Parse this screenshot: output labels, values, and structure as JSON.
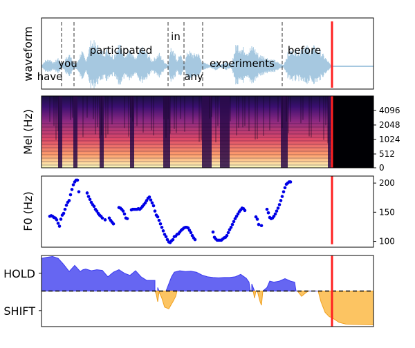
{
  "colors": {
    "waveform": "#a6c8e0",
    "cursor": "#ff2020",
    "word_boundary": "#303030",
    "f0_points": "#0000e6",
    "hold_fill": "#6666f2",
    "hold_edge": "#3a3af0",
    "shift_fill": "#fcc462",
    "shift_edge": "#f0a020",
    "threshold": "#000000",
    "mel_bg": "#000004"
  },
  "chart_data": [
    {
      "type": "line",
      "panel": "waveform",
      "ylabel": "waveform",
      "x_range": [
        0,
        480
      ],
      "cursor_x": 420,
      "word_boundaries": [
        29,
        47,
        183,
        206,
        233,
        348
      ],
      "words": [
        {
          "text": "have",
          "x": 12,
          "level": "low"
        },
        {
          "text": "you",
          "x": 38,
          "level": "mid"
        },
        {
          "text": "participated",
          "x": 115,
          "level": "high"
        },
        {
          "text": "in",
          "x": 194,
          "level": "top"
        },
        {
          "text": "any",
          "x": 220,
          "level": "low"
        },
        {
          "text": "experiments",
          "x": 290,
          "level": "mid"
        },
        {
          "text": "before",
          "x": 380,
          "level": "high"
        }
      ],
      "envelope": [
        [
          0,
          0.04
        ],
        [
          5,
          0.2
        ],
        [
          12,
          0.25
        ],
        [
          18,
          0.12
        ],
        [
          24,
          0.3
        ],
        [
          30,
          0.05
        ],
        [
          36,
          0.3
        ],
        [
          42,
          0.45
        ],
        [
          47,
          0.08
        ],
        [
          52,
          0.15
        ],
        [
          58,
          0.55
        ],
        [
          64,
          0.2
        ],
        [
          72,
          0.9
        ],
        [
          80,
          0.75
        ],
        [
          88,
          0.5
        ],
        [
          96,
          0.6
        ],
        [
          104,
          0.35
        ],
        [
          112,
          0.8
        ],
        [
          120,
          0.45
        ],
        [
          128,
          0.55
        ],
        [
          136,
          0.25
        ],
        [
          144,
          0.65
        ],
        [
          152,
          0.5
        ],
        [
          160,
          0.2
        ],
        [
          170,
          0.45
        ],
        [
          178,
          0.15
        ],
        [
          183,
          0.05
        ],
        [
          186,
          0.55
        ],
        [
          190,
          0.7
        ],
        [
          196,
          0.2
        ],
        [
          200,
          0.45
        ],
        [
          206,
          0.1
        ],
        [
          212,
          0.55
        ],
        [
          220,
          0.4
        ],
        [
          226,
          0.5
        ],
        [
          232,
          0.15
        ],
        [
          238,
          0.1
        ],
        [
          245,
          0.05
        ],
        [
          252,
          0.2
        ],
        [
          258,
          0.05
        ],
        [
          266,
          0.15
        ],
        [
          274,
          0.05
        ],
        [
          282,
          0.8
        ],
        [
          290,
          0.65
        ],
        [
          298,
          0.55
        ],
        [
          306,
          0.7
        ],
        [
          314,
          0.4
        ],
        [
          322,
          0.35
        ],
        [
          330,
          0.25
        ],
        [
          338,
          0.2
        ],
        [
          344,
          0.1
        ],
        [
          350,
          0.05
        ],
        [
          356,
          0.45
        ],
        [
          364,
          0.6
        ],
        [
          372,
          0.55
        ],
        [
          380,
          0.75
        ],
        [
          388,
          0.6
        ],
        [
          396,
          0.7
        ],
        [
          404,
          0.5
        ],
        [
          412,
          0.25
        ],
        [
          418,
          0.05
        ],
        [
          420,
          0.02
        ],
        [
          480,
          0.02
        ]
      ]
    },
    {
      "type": "heatmap",
      "panel": "mel",
      "ylabel": "Mel (Hz)",
      "x_range": [
        0,
        480
      ],
      "cursor_x": 420,
      "yticks": [
        "0",
        "512",
        "1024",
        "2048",
        "4096"
      ]
    },
    {
      "type": "scatter",
      "panel": "f0",
      "ylabel": "F0 (Hz)",
      "x_range": [
        0,
        480
      ],
      "ylim": [
        90,
        212
      ],
      "yticks": [
        100,
        150,
        200
      ],
      "cursor_x": 420,
      "cursor_range": [
        95,
        212
      ],
      "points": [
        [
          12,
          143
        ],
        [
          14,
          144
        ],
        [
          16,
          143
        ],
        [
          18,
          141
        ],
        [
          20,
          140
        ],
        [
          22,
          137
        ],
        [
          24,
          131
        ],
        [
          26,
          126
        ],
        [
          28,
          138
        ],
        [
          30,
          145
        ],
        [
          32,
          148
        ],
        [
          34,
          155
        ],
        [
          36,
          162
        ],
        [
          38,
          167
        ],
        [
          40,
          170
        ],
        [
          42,
          180
        ],
        [
          44,
          189
        ],
        [
          46,
          197
        ],
        [
          48,
          202
        ],
        [
          50,
          205
        ],
        [
          52,
          205
        ],
        [
          54,
          185
        ],
        [
          66,
          183
        ],
        [
          68,
          177
        ],
        [
          70,
          172
        ],
        [
          72,
          167
        ],
        [
          74,
          163
        ],
        [
          76,
          160
        ],
        [
          78,
          155
        ],
        [
          80,
          152
        ],
        [
          82,
          148
        ],
        [
          84,
          145
        ],
        [
          86,
          143
        ],
        [
          88,
          140
        ],
        [
          92,
          137
        ],
        [
          98,
          140
        ],
        [
          100,
          136
        ],
        [
          102,
          133
        ],
        [
          104,
          130
        ],
        [
          112,
          158
        ],
        [
          114,
          157
        ],
        [
          116,
          155
        ],
        [
          118,
          152
        ],
        [
          120,
          147
        ],
        [
          122,
          140
        ],
        [
          124,
          139
        ],
        [
          130,
          154
        ],
        [
          132,
          155
        ],
        [
          134,
          155
        ],
        [
          136,
          155
        ],
        [
          138,
          155
        ],
        [
          140,
          156
        ],
        [
          142,
          155
        ],
        [
          144,
          157
        ],
        [
          146,
          160
        ],
        [
          148,
          163
        ],
        [
          150,
          166
        ],
        [
          152,
          170
        ],
        [
          154,
          174
        ],
        [
          156,
          176
        ],
        [
          158,
          171
        ],
        [
          160,
          166
        ],
        [
          162,
          161
        ],
        [
          164,
          152
        ],
        [
          166,
          145
        ],
        [
          168,
          142
        ],
        [
          170,
          136
        ],
        [
          172,
          130
        ],
        [
          174,
          124
        ],
        [
          176,
          118
        ],
        [
          178,
          112
        ],
        [
          180,
          108
        ],
        [
          182,
          103
        ],
        [
          184,
          99
        ],
        [
          186,
          98
        ],
        [
          188,
          101
        ],
        [
          190,
          103
        ],
        [
          192,
          108
        ],
        [
          194,
          109
        ],
        [
          196,
          112
        ],
        [
          198,
          113
        ],
        [
          200,
          116
        ],
        [
          202,
          119
        ],
        [
          204,
          121
        ],
        [
          206,
          123
        ],
        [
          208,
          124
        ],
        [
          210,
          124
        ],
        [
          212,
          123
        ],
        [
          214,
          119
        ],
        [
          216,
          115
        ],
        [
          218,
          110
        ],
        [
          220,
          106
        ],
        [
          222,
          103
        ],
        [
          248,
          116
        ],
        [
          250,
          107
        ],
        [
          252,
          104
        ],
        [
          254,
          102
        ],
        [
          256,
          102
        ],
        [
          258,
          102
        ],
        [
          260,
          102
        ],
        [
          262,
          104
        ],
        [
          264,
          106
        ],
        [
          266,
          107
        ],
        [
          268,
          110
        ],
        [
          270,
          115
        ],
        [
          272,
          120
        ],
        [
          274,
          124
        ],
        [
          276,
          129
        ],
        [
          278,
          134
        ],
        [
          280,
          139
        ],
        [
          282,
          143
        ],
        [
          284,
          147
        ],
        [
          286,
          151
        ],
        [
          288,
          154
        ],
        [
          290,
          157
        ],
        [
          292,
          156
        ],
        [
          294,
          153
        ],
        [
          310,
          142
        ],
        [
          312,
          138
        ],
        [
          314,
          129
        ],
        [
          318,
          127
        ],
        [
          326,
          155
        ],
        [
          328,
          149
        ],
        [
          330,
          141
        ],
        [
          332,
          139
        ],
        [
          334,
          140
        ],
        [
          336,
          143
        ],
        [
          338,
          147
        ],
        [
          340,
          152
        ],
        [
          342,
          157
        ],
        [
          344,
          163
        ],
        [
          346,
          170
        ],
        [
          348,
          177
        ],
        [
          350,
          185
        ],
        [
          352,
          192
        ],
        [
          354,
          198
        ],
        [
          356,
          200
        ],
        [
          358,
          202
        ],
        [
          360,
          202
        ]
      ]
    },
    {
      "type": "area",
      "panel": "turn-taking",
      "yticks": [
        "HOLD",
        "SHIFT"
      ],
      "ylim": [
        -1,
        1
      ],
      "threshold": 0,
      "cursor_x": 420,
      "x_range": [
        0,
        480
      ],
      "series": [
        {
          "points": [
            [
              0,
              0.92
            ],
            [
              8,
              0.95
            ],
            [
              16,
              0.97
            ],
            [
              24,
              0.92
            ],
            [
              32,
              0.75
            ],
            [
              40,
              0.55
            ],
            [
              48,
              0.72
            ],
            [
              56,
              0.55
            ],
            [
              60,
              0.6
            ],
            [
              64,
              0.62
            ],
            [
              72,
              0.57
            ],
            [
              80,
              0.6
            ],
            [
              88,
              0.58
            ],
            [
              96,
              0.4
            ],
            [
              104,
              0.53
            ],
            [
              112,
              0.6
            ],
            [
              120,
              0.5
            ],
            [
              128,
              0.44
            ],
            [
              136,
              0.57
            ],
            [
              144,
              0.4
            ],
            [
              152,
              0.3
            ],
            [
              160,
              0.3
            ],
            [
              164,
              0.3
            ],
            [
              164,
              0
            ],
            [
              168,
              0
            ],
            [
              168,
              0.1
            ],
            [
              170,
              0
            ],
            [
              180,
              0
            ],
            [
              184,
              0.2
            ],
            [
              188,
              0.4
            ],
            [
              192,
              0.53
            ],
            [
              200,
              0.57
            ],
            [
              208,
              0.55
            ],
            [
              216,
              0.56
            ],
            [
              224,
              0.53
            ],
            [
              232,
              0.45
            ],
            [
              240,
              0.4
            ],
            [
              248,
              0.38
            ],
            [
              256,
              0.37
            ],
            [
              264,
              0.38
            ],
            [
              272,
              0.38
            ],
            [
              280,
              0.4
            ],
            [
              288,
              0.47
            ],
            [
              296,
              0.36
            ],
            [
              300,
              0.25
            ],
            [
              302,
              0
            ],
            [
              304,
              0
            ],
            [
              304,
              0.2
            ],
            [
              308,
              0
            ],
            [
              320,
              0
            ],
            [
              326,
              0.1
            ],
            [
              330,
              0.28
            ],
            [
              336,
              0.25
            ],
            [
              344,
              0.28
            ],
            [
              352,
              0.35
            ],
            [
              360,
              0.28
            ],
            [
              366,
              0.25
            ],
            [
              368,
              0
            ],
            [
              480,
              0
            ]
          ]
        }
      ]
    }
  ]
}
